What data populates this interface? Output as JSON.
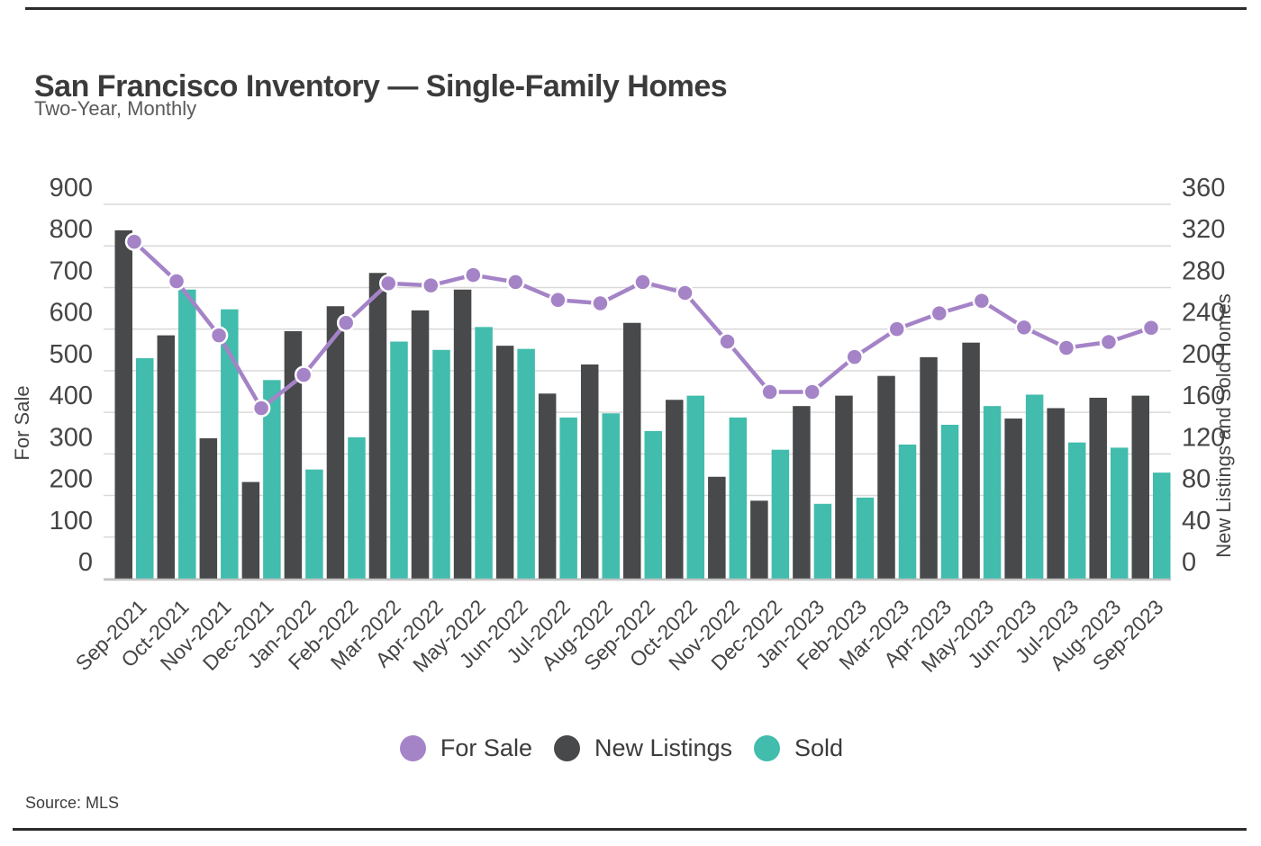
{
  "page": {
    "title": "San Francisco Inventory — Single-Family Homes",
    "subtitle": "Two-Year, Monthly",
    "source_note": "Source: MLS"
  },
  "colors": {
    "for_sale": "#a583c7",
    "new_listings": "#47494b",
    "sold": "#42bcac",
    "gridline": "#d9d9d9",
    "axis_line": "#c3c3c3",
    "tick_text": "#454545",
    "title_text": "#3b3b3b",
    "subtitle_text": "#5a5a5a",
    "source_text": "#3d3d3d",
    "rule": "#2b2b2b",
    "marker_stroke": "#ffffff"
  },
  "left_axis": {
    "title": "For Sale",
    "ticks": [
      900,
      800,
      700,
      600,
      500,
      400,
      300,
      200,
      100,
      0
    ]
  },
  "right_axis": {
    "title": "New Listings and Sold Homes",
    "ticks": [
      360,
      320,
      280,
      240,
      200,
      160,
      120,
      80,
      40,
      0
    ]
  },
  "chart_data": {
    "type": "combo-bar-line",
    "title": "San Francisco Inventory — Single-Family Homes",
    "subtitle": "Two-Year, Monthly",
    "grid": true,
    "legend_position": "bottom",
    "left_ylim": [
      0,
      900
    ],
    "right_ylim": [
      0,
      360
    ],
    "categories": [
      "Sep-2021",
      "Oct-2021",
      "Nov-2021",
      "Dec-2021",
      "Jan-2022",
      "Feb-2022",
      "Mar-2022",
      "Apr-2022",
      "May-2022",
      "Jun-2022",
      "Jul-2022",
      "Aug-2022",
      "Sep-2022",
      "Oct-2022",
      "Nov-2022",
      "Dec-2022",
      "Jan-2023",
      "Feb-2023",
      "Mar-2023",
      "Apr-2023",
      "May-2023",
      "Jun-2023",
      "Jul-2023",
      "Aug-2023",
      "Sep-2023"
    ],
    "series": [
      {
        "name": "For Sale",
        "type": "line",
        "axis": "left",
        "color": "#a583c7",
        "values": [
          810,
          715,
          585,
          410,
          490,
          615,
          710,
          705,
          730,
          713,
          670,
          662,
          713,
          687,
          570,
          449,
          449,
          533,
          600,
          638,
          668,
          604,
          555,
          569,
          603
        ]
      },
      {
        "name": "New Listings",
        "type": "bar",
        "axis": "right",
        "color": "#47494b",
        "values": [
          335,
          234,
          135,
          93,
          238,
          262,
          294,
          258,
          278,
          224,
          178,
          206,
          246,
          172,
          98,
          75,
          166,
          176,
          195,
          213,
          227,
          154,
          164,
          174,
          176
        ]
      },
      {
        "name": "Sold",
        "type": "bar",
        "axis": "right",
        "color": "#42bcac",
        "values": [
          212,
          278,
          259,
          191,
          105,
          136,
          228,
          220,
          242,
          221,
          155,
          159,
          142,
          176,
          155,
          124,
          72,
          78,
          129,
          148,
          166,
          177,
          131,
          126,
          102
        ]
      }
    ]
  }
}
